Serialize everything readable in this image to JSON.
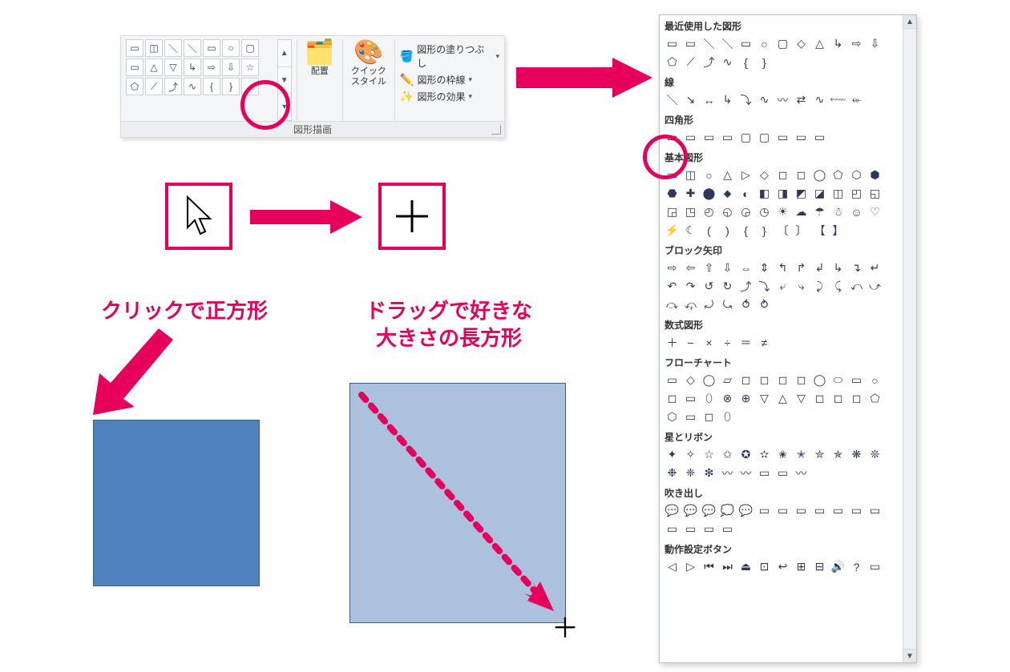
{
  "annotation_color": "#e6005c",
  "ribbon": {
    "footer_label": "図形描画",
    "buttons": {
      "arrange": "配置",
      "quick_styles": "クイック\nスタイル"
    },
    "small": {
      "fill": "図形の塗りつぶし",
      "outline": "図形の枠線",
      "effects": "図形の効果"
    },
    "mini_rows": [
      [
        "▭",
        "◫",
        "＼",
        "＼",
        "▭",
        "○",
        "▢"
      ],
      [
        "▭",
        "△",
        "▽",
        "↳",
        "⇨",
        "⇩",
        "☆"
      ],
      [
        "⬠",
        "⟋",
        "⤴",
        "∿",
        "{",
        "}",
        "…"
      ]
    ]
  },
  "text": {
    "click_square": "クリックで正方形",
    "drag_rect": "ドラッグで好きな\n大きさの長方形"
  },
  "colors": {
    "blue_square_fill": "#4f81bd",
    "blue_square_border": "#3b628f",
    "light_rect_fill": "#abc1de"
  },
  "shapes_panel": {
    "categories": [
      {
        "name": "最近使用した図形",
        "icons": [
          "▭",
          "▭",
          "＼",
          "＼",
          "▭",
          "○",
          "▢",
          "◇",
          "△",
          "↳",
          "⇨",
          "⇩",
          "⬠",
          "⟋",
          "⤴",
          "∿",
          "{",
          "}"
        ]
      },
      {
        "name": "線",
        "icons": [
          "＼",
          "↘",
          "↔",
          "↳",
          "⤵",
          "∿",
          "〰",
          "⇄",
          "∿",
          "⬳",
          "⬰"
        ]
      },
      {
        "name": "四角形",
        "icons": [
          "▭",
          "▭",
          "▭",
          "▭",
          "▢",
          "▢",
          "▭",
          "▭",
          "▭"
        ]
      },
      {
        "name": "基本図形",
        "icons": [
          "▭",
          "◫",
          "○",
          "△",
          "▷",
          "◇",
          "◻",
          "◻",
          "◯",
          "⬠",
          "⬡",
          "⬢",
          "⬣",
          "✚",
          "⬤",
          "⬥",
          "◐",
          "◧",
          "◨",
          "◩",
          "◪",
          "◫",
          "◰",
          "◱",
          "◲",
          "◳",
          "◴",
          "◵",
          "◶",
          "◷",
          "☀",
          "☁",
          "☂",
          "☃",
          "☺",
          "♡",
          "⚡",
          "☾",
          "(",
          ")",
          "{",
          "}",
          "〔",
          "〕",
          "【",
          "】"
        ]
      },
      {
        "name": "ブロック矢印",
        "icons": [
          "⇨",
          "⇦",
          "⇧",
          "⇩",
          "⇔",
          "⇕",
          "↰",
          "↱",
          "↲",
          "↳",
          "↴",
          "↵",
          "↶",
          "↷",
          "↺",
          "↻",
          "⤴",
          "⤵",
          "⤶",
          "⤷",
          "⤸",
          "⤹",
          "⤺",
          "⤻",
          "⤼",
          "⤽",
          "⤾",
          "⤿",
          "⥀",
          "⥁"
        ]
      },
      {
        "name": "数式図形",
        "icons": [
          "＋",
          "−",
          "×",
          "÷",
          "＝",
          "≠"
        ]
      },
      {
        "name": "フローチャート",
        "icons": [
          "▭",
          "◇",
          "◯",
          "▱",
          "◻",
          "◻",
          "◻",
          "◻",
          "◯",
          "⬭",
          "▭",
          "○",
          "◻",
          "▭",
          "⬯",
          "⊗",
          "⊕",
          "▽",
          "△",
          "▽",
          "◻",
          "◻",
          "◻",
          "⬠",
          "⬡",
          "▭",
          "◻",
          "⬯"
        ]
      },
      {
        "name": "星とリボン",
        "icons": [
          "✦",
          "✧",
          "☆",
          "✩",
          "✪",
          "✫",
          "✬",
          "✭",
          "✮",
          "✯",
          "❋",
          "❊",
          "❉",
          "❈",
          "❇",
          "〰",
          "〰",
          "▭",
          "▭",
          "〰"
        ]
      },
      {
        "name": "吹き出し",
        "icons": [
          "💬",
          "💬",
          "💬",
          "💭",
          "💬",
          "▭",
          "▭",
          "▭",
          "▭",
          "▭",
          "▭",
          "▭",
          "▭",
          "▭",
          "▭",
          "▭"
        ]
      },
      {
        "name": "動作設定ボタン",
        "icons": [
          "◁",
          "▷",
          "⏮",
          "⏭",
          "⏏",
          "⊡",
          "↩",
          "⊞",
          "⊟",
          "🔊",
          "?",
          "▭"
        ]
      }
    ]
  }
}
